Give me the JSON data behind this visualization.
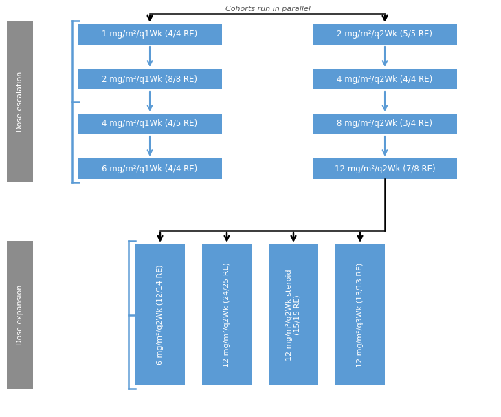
{
  "fig_width": 7.29,
  "fig_height": 6.06,
  "dpi": 100,
  "bg_color": "#ffffff",
  "box_color": "#5b9bd5",
  "box_text_color": "#ffffff",
  "arrow_color": "#000000",
  "brace_color": "#5b9bd5",
  "gray_color": "#8c8c8c",
  "cohort_label": "Cohorts run in parallel",
  "dose_escalation_label": "Dose escalation",
  "dose_expansion_label": "Dose expansion",
  "escalation_left_boxes": [
    "1 mg/m²/q1Wk (4/4 RE)",
    "2 mg/m²/q1Wk (8/8 RE)",
    "4 mg/m²/q1Wk (4/5 RE)",
    "6 mg/m²/q1Wk (4/4 RE)"
  ],
  "escalation_right_boxes": [
    "2 mg/m²/q2Wk (5/5 RE)",
    "4 mg/m²/q2Wk (4/4 RE)",
    "8 mg/m²/q2Wk (3/4 RE)",
    "12 mg/m²/q2Wk (7/8 RE)"
  ],
  "expansion_boxes": [
    "6 mg/m²/q2Wk (12/14 RE)",
    "12 mg/m²/q2Wk (24/25 RE)",
    "12 mg/m²/q2Wk-steroid\n(15/15 RE)",
    "12 mg/m²/q3Wk (13/13 RE)"
  ],
  "xlim": [
    0,
    729
  ],
  "ylim": [
    0,
    606
  ]
}
